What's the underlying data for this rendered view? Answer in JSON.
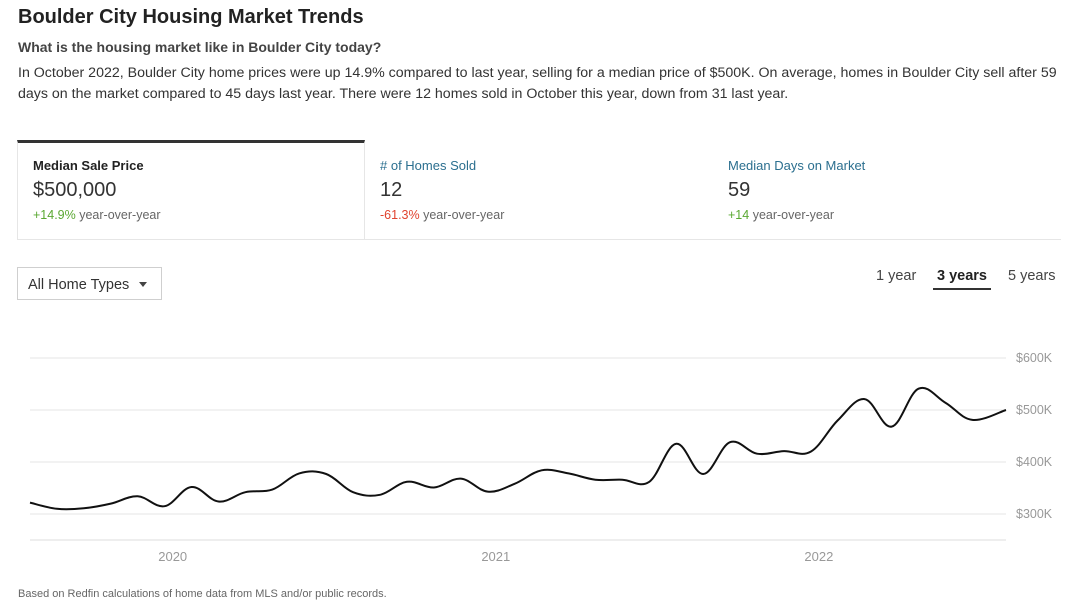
{
  "page": {
    "title": "Boulder City Housing Market Trends",
    "subtitle": "What is the housing market like in Boulder City today?",
    "summary": "In October 2022, Boulder City home prices were up 14.9% compared to last year, selling for a median price of $500K. On average, homes in Boulder City sell after 59 days on the market compared to 45 days last year. There were 12 homes sold in October this year, down from 31 last year.",
    "footnote": "Based on Redfin calculations of home data from MLS and/or public records."
  },
  "tabs": [
    {
      "label": "Median Sale Price",
      "value": "$500,000",
      "change": "+14.9%",
      "change_suffix": "year-over-year"
    },
    {
      "label": "# of Homes Sold",
      "value": "12",
      "change": "-61.3%",
      "change_suffix": "year-over-year"
    },
    {
      "label": "Median Days on Market",
      "value": "59",
      "change": "+14",
      "change_suffix": "year-over-year"
    }
  ],
  "filter": {
    "selected": "All Home Types"
  },
  "ranges": [
    "1 year",
    "3 years",
    "5 years"
  ],
  "selected_range": "3 years",
  "colors": {
    "line": "#111111",
    "grid": "#e6e6e6",
    "axis_text": "#999999",
    "positive": "#5aa832",
    "negative": "#e0432f",
    "link": "#2b6f8f"
  },
  "chart_data": {
    "type": "line",
    "series": [
      {
        "x": [
          "2019-10",
          "2019-11",
          "2019-12",
          "2020-01",
          "2020-02",
          "2020-03",
          "2020-04",
          "2020-05",
          "2020-06",
          "2020-07",
          "2020-08",
          "2020-09",
          "2020-10",
          "2020-11",
          "2020-12",
          "2021-01",
          "2021-02",
          "2021-03",
          "2021-04",
          "2021-05",
          "2021-06",
          "2021-07",
          "2021-08",
          "2021-09",
          "2021-10",
          "2021-11",
          "2021-12",
          "2022-01",
          "2022-02",
          "2022-03",
          "2022-04",
          "2022-05",
          "2022-06",
          "2022-07",
          "2022-08",
          "2022-09",
          "2022-10"
        ],
        "values": [
          322,
          310,
          311,
          320,
          334,
          315,
          352,
          324,
          342,
          347,
          378,
          377,
          342,
          337,
          362,
          351,
          368,
          343,
          358,
          384,
          378,
          366,
          366,
          362,
          435,
          377,
          438,
          416,
          421,
          420,
          480,
          521,
          468,
          541,
          514,
          481,
          500
        ]
      }
    ],
    "x_ticks": [
      "2020",
      "2021",
      "2022"
    ],
    "y_ticks": [
      "$300K",
      "$400K",
      "$500K",
      "$600K"
    ],
    "ylim": [
      300,
      600
    ],
    "grid": true,
    "y_axis_position": "right"
  }
}
